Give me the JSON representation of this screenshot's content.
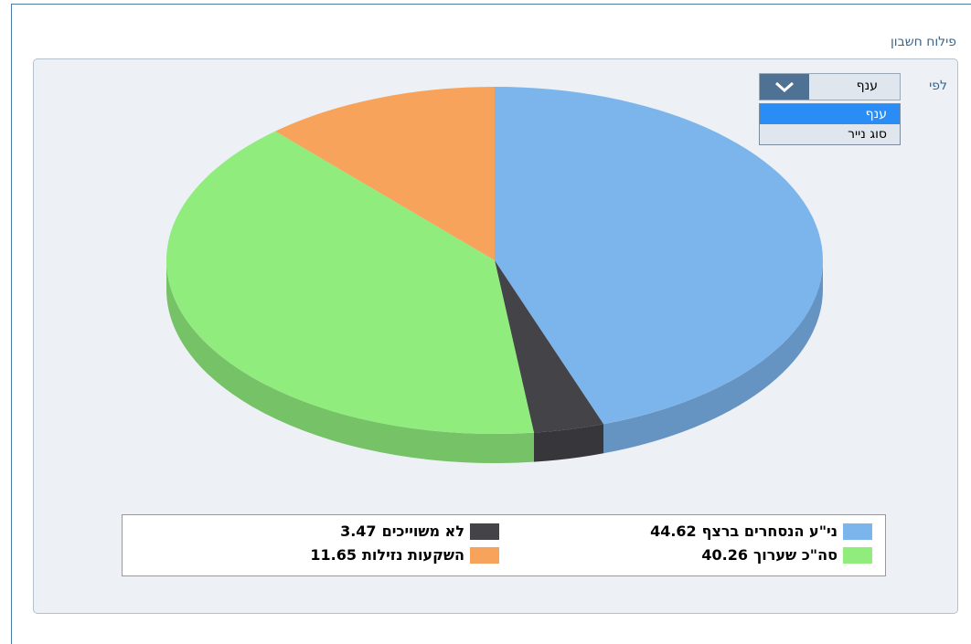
{
  "header": {
    "title": "פילוח חשבון"
  },
  "filter": {
    "label": "לפי",
    "selected": "ענף",
    "options": [
      "ענף",
      "סוג נייר"
    ]
  },
  "chart_data": {
    "type": "pie",
    "categories": [
      "ני\"ע הנסחרים ברצף",
      "לא משוייכים",
      "סה\"כ שערוך",
      "השקעות נזילות"
    ],
    "values": [
      44.62,
      3.47,
      40.26,
      11.65
    ],
    "colors": [
      "#7cb5ec",
      "#434348",
      "#90ed7d",
      "#f7a35c"
    ]
  }
}
